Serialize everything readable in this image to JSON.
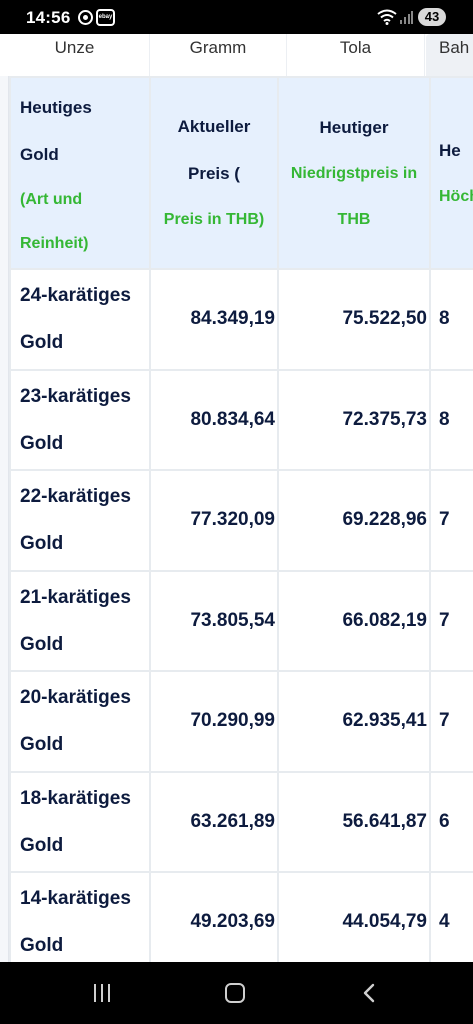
{
  "status_bar": {
    "time": "14:56",
    "notif_icon_2_text": "ebay",
    "battery": "43"
  },
  "tabs": [
    {
      "label": "Unze"
    },
    {
      "label": "Gramm"
    },
    {
      "label": "Tola"
    },
    {
      "label": "Bah"
    }
  ],
  "table": {
    "headers": {
      "col1": {
        "lines": [
          "Heutiges",
          "Gold"
        ],
        "green": [
          "(Art und",
          "Reinheit)"
        ]
      },
      "col2": {
        "lines": [
          "Aktueller",
          "Preis ("
        ],
        "green": [
          "Preis in THB)"
        ]
      },
      "col3": {
        "lines": [
          "Heutiger"
        ],
        "green": [
          "Niedrigstpreis in",
          "THB"
        ]
      },
      "col4": {
        "lines": [
          "He"
        ],
        "green": [
          "Höch"
        ]
      }
    },
    "rows": [
      {
        "label_1": "24-karätiges",
        "label_2": "Gold",
        "current": "84.349,19",
        "low": "75.522,50",
        "high": "8"
      },
      {
        "label_1": "23-karätiges",
        "label_2": "Gold",
        "current": "80.834,64",
        "low": "72.375,73",
        "high": "8"
      },
      {
        "label_1": "22-karätiges",
        "label_2": "Gold",
        "current": "77.320,09",
        "low": "69.228,96",
        "high": "7"
      },
      {
        "label_1": "21-karätiges",
        "label_2": "Gold",
        "current": "73.805,54",
        "low": "66.082,19",
        "high": "7"
      },
      {
        "label_1": "20-karätiges",
        "label_2": "Gold",
        "current": "70.290,99",
        "low": "62.935,41",
        "high": "7"
      },
      {
        "label_1": "18-karätiges",
        "label_2": "Gold",
        "current": "63.261,89",
        "low": "56.641,87",
        "high": "6"
      },
      {
        "label_1": "14-karätiges",
        "label_2": "Gold",
        "current": "49.203,69",
        "low": "44.054,79",
        "high": "4"
      }
    ]
  },
  "icons": {
    "recents": "recents-icon",
    "home": "home-icon",
    "back": "back-icon",
    "wifi": "wifi-icon",
    "signal": "signal-icon"
  },
  "colors": {
    "header_bg": "#e6f0fd",
    "green_text": "#35b735",
    "text_dark": "#0d1b3e"
  }
}
